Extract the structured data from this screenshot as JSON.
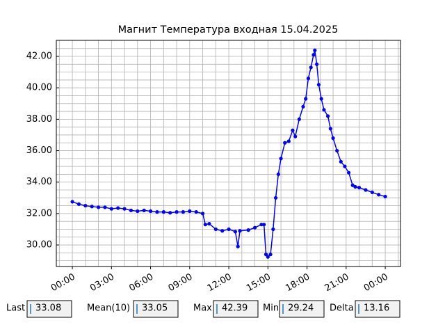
{
  "chart_data": {
    "type": "line",
    "title": "Магнит Температура входная 15.04.2025",
    "series": [
      {
        "name": null,
        "color": "#0000ff",
        "x": [
          0,
          0.5,
          1,
          1.5,
          2,
          2.5,
          3,
          3.5,
          4,
          4.5,
          5,
          5.5,
          6,
          6.5,
          7,
          7.5,
          8,
          8.5,
          9,
          9.5,
          10,
          10.2,
          10.5,
          11,
          11.5,
          12,
          12.5,
          12.7,
          12.85,
          13.5,
          14,
          14.5,
          14.7,
          14.85,
          15,
          15.2,
          15.4,
          15.6,
          15.8,
          16,
          16.3,
          16.6,
          16.9,
          17.1,
          17.4,
          17.7,
          17.9,
          18.1,
          18.3,
          18.5,
          18.6,
          18.75,
          18.9,
          19.1,
          19.3,
          19.6,
          19.8,
          20,
          20.3,
          20.6,
          20.9,
          21.2,
          21.5,
          21.7,
          22,
          22.5,
          23,
          23.5,
          24
        ],
        "values": [
          32.75,
          32.6,
          32.5,
          32.45,
          32.4,
          32.4,
          32.3,
          32.35,
          32.3,
          32.2,
          32.15,
          32.2,
          32.15,
          32.1,
          32.1,
          32.05,
          32.1,
          32.1,
          32.15,
          32.1,
          32.0,
          31.3,
          31.35,
          31.0,
          30.9,
          31.0,
          30.85,
          29.9,
          30.9,
          30.95,
          31.1,
          31.3,
          31.3,
          29.4,
          29.24,
          29.4,
          31.0,
          33.0,
          34.5,
          35.5,
          36.5,
          36.6,
          37.3,
          36.9,
          38.0,
          38.8,
          39.3,
          40.6,
          41.3,
          42.1,
          42.39,
          41.5,
          40.2,
          39.3,
          38.6,
          38.2,
          37.4,
          36.8,
          36.0,
          35.3,
          35.0,
          34.6,
          33.8,
          33.7,
          33.65,
          33.5,
          33.35,
          33.2,
          33.08
        ]
      }
    ],
    "xlim": [
      -1.23,
      25.17
    ],
    "ylim": [
      28.63,
      43.02
    ],
    "xticks": [
      {
        "value": 0,
        "label": "00:00"
      },
      {
        "value": 3,
        "label": "03:00"
      },
      {
        "value": 6,
        "label": "06:00"
      },
      {
        "value": 9,
        "label": "09:00"
      },
      {
        "value": 12,
        "label": "12:00"
      },
      {
        "value": 15,
        "label": "15:00"
      },
      {
        "value": 18,
        "label": "18:00"
      },
      {
        "value": 21,
        "label": "21:00"
      },
      {
        "value": 24,
        "label": "00:00"
      }
    ],
    "yticks": [
      {
        "value": 30,
        "label": "30.00"
      },
      {
        "value": 32,
        "label": "32.00"
      },
      {
        "value": 34,
        "label": "34.00"
      },
      {
        "value": 36,
        "label": "36.00"
      },
      {
        "value": 38,
        "label": "38.00"
      },
      {
        "value": 40,
        "label": "40.00"
      },
      {
        "value": 42,
        "label": "42.00"
      }
    ],
    "xminorticks": [
      -1,
      0,
      1,
      2,
      3,
      4,
      5,
      6,
      7,
      8,
      9,
      10,
      11,
      12,
      13,
      14,
      15,
      16,
      17,
      18,
      19,
      20,
      21,
      22,
      23,
      24,
      25
    ],
    "yminorticks": [
      29,
      29.5,
      30,
      30.5,
      31,
      31.5,
      32,
      32.5,
      33,
      33.5,
      34,
      34.5,
      35,
      35.5,
      36,
      36.5,
      37,
      37.5,
      38,
      38.5,
      39,
      39.5,
      40,
      40.5,
      41,
      41.5,
      42,
      42.5
    ],
    "grid": true
  },
  "stats": [
    {
      "label": "Last",
      "value": 33.08
    },
    {
      "label": "Mean(10)",
      "value": 33.05
    },
    {
      "label": "Max",
      "value": 42.39
    },
    {
      "label": "Min",
      "value": 29.24
    },
    {
      "label": "Delta",
      "value": 13.16
    }
  ]
}
